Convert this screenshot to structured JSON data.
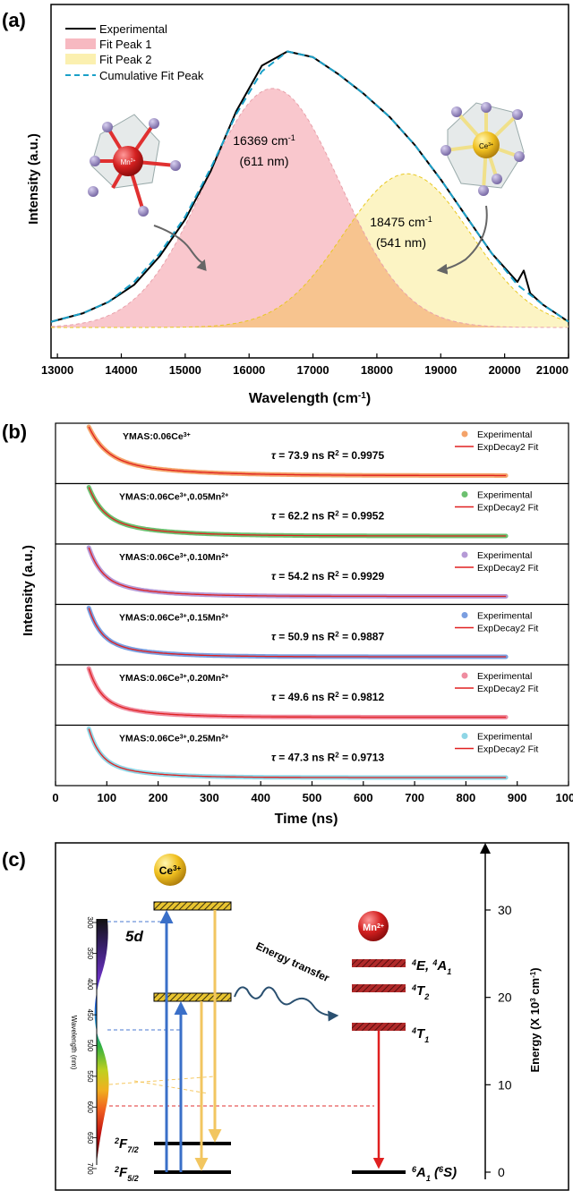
{
  "panel_a": {
    "label": "(a)",
    "ylabel": "Intensity (a.u.)",
    "xlabel_main": "Wavelength (cm",
    "xlabel_sup": "-1",
    "xlabel_close": ")",
    "legend": [
      "Experimental",
      "Fit Peak 1",
      "Fit Peak 2",
      "Cumulative Fit Peak"
    ],
    "peak1_line1_main": "16369 cm",
    "peak1_line1_sup": "-1",
    "peak1_line2": "(611 nm)",
    "peak2_line1_main": "18475 cm",
    "peak2_line1_sup": "-1",
    "peak2_line2": "(541 nm)",
    "ion_left": "Mn",
    "ion_left_sup": "2+",
    "ion_right": "Ce",
    "ion_right_sup": "3+"
  },
  "panel_b": {
    "label": "(b)",
    "ylabel": "Intensity (a.u.)",
    "xlabel": "Time (ns)",
    "legend_exp": "Experimental",
    "legend_fit": "ExpDecay2 Fit"
  },
  "panel_c": {
    "label": "(c)",
    "ce_ion": "Ce",
    "ce_sup": "3+",
    "mn_ion": "Mn",
    "mn_sup": "2+",
    "level_5d": "5d",
    "level_f72_main": "F",
    "level_f72_pre": "2",
    "level_f72_sub": "7/2",
    "level_f52_pre": "2",
    "level_f52_main": "F",
    "level_f52_sub": "5/2",
    "mn_levels": [
      {
        "pre": "4",
        "main": "E, ",
        "pre2": "4",
        "main2": "A",
        "sub": "1"
      },
      {
        "pre": "4",
        "main": "T",
        "sub": "2"
      },
      {
        "pre": "4",
        "main": "T",
        "sub": "1"
      }
    ],
    "ground_mn_pre": "6",
    "ground_mn_main": "A",
    "ground_mn_sub": "1",
    "ground_mn_tail": " (",
    "ground_mn_pre2": "6",
    "ground_mn_tail2": "S)",
    "energy_transfer": "Energy transfer",
    "spectrum_axis_label": "Wavelength (nm)",
    "spectrum_ticks": [
      "300",
      "350",
      "400",
      "450",
      "500",
      "550",
      "600",
      "650",
      "700"
    ],
    "energy_axis_label_main": "Energy (X 10",
    "energy_axis_label_sup": "3",
    "energy_axis_label_unit": " cm",
    "energy_axis_label_sup2": "-1",
    "energy_axis_label_close": ")",
    "energy_ticks": [
      0,
      10,
      20,
      30
    ]
  },
  "colors": {
    "experimental": "#000000",
    "peak1_fill": "#f7b9c1",
    "peak2_fill": "#fbf0b0",
    "overlap_fill": "#f7c48f",
    "cumulative": "#1aa0c8",
    "fit_red": "#e02020",
    "ce_yellow": "#f0c020",
    "mn_red": "#d02020",
    "hatch": "#8b1a1a",
    "arrow_blue": "#3a6fc8"
  },
  "chart_data": [
    {
      "type": "area",
      "title": "(a)",
      "xlabel": "Wavelength (cm-1)",
      "ylabel": "Intensity (a.u.)",
      "xlim": [
        12900,
        21000
      ],
      "xticks": [
        13000,
        14000,
        15000,
        16000,
        17000,
        18000,
        19000,
        20000,
        21000
      ],
      "series": [
        {
          "name": "Fit Peak 1",
          "center": 16369,
          "sigma": 1050,
          "amplitude": 0.84
        },
        {
          "name": "Fit Peak 2",
          "center": 18475,
          "sigma": 1000,
          "amplitude": 0.54
        },
        {
          "name": "Experimental",
          "x": [
            12900,
            13400,
            13800,
            14200,
            14600,
            15000,
            15400,
            15800,
            16200,
            16600,
            17000,
            17400,
            17800,
            18200,
            18600,
            19000,
            19400,
            19800,
            20200,
            20300,
            20400,
            20600,
            21000
          ],
          "y": [
            0.02,
            0.05,
            0.09,
            0.15,
            0.25,
            0.38,
            0.55,
            0.76,
            0.92,
            0.97,
            0.95,
            0.89,
            0.82,
            0.74,
            0.64,
            0.52,
            0.39,
            0.26,
            0.16,
            0.2,
            0.12,
            0.08,
            0.02
          ]
        },
        {
          "name": "Cumulative Fit Peak",
          "x": [
            12900,
            13400,
            13800,
            14200,
            14600,
            15000,
            15400,
            15800,
            16200,
            16600,
            17000,
            17400,
            17800,
            18200,
            18600,
            19000,
            19400,
            19800,
            20200,
            20600,
            21000
          ],
          "y": [
            0.02,
            0.05,
            0.09,
            0.16,
            0.26,
            0.39,
            0.56,
            0.75,
            0.9,
            0.97,
            0.95,
            0.89,
            0.82,
            0.74,
            0.64,
            0.52,
            0.39,
            0.26,
            0.15,
            0.08,
            0.02
          ]
        }
      ],
      "annotations": [
        "16369 cm-1 (611 nm)",
        "18475 cm-1 (541 nm)"
      ],
      "legend": "top-left"
    },
    {
      "type": "line",
      "title": "(b)",
      "xlabel": "Time (ns)",
      "ylabel": "Intensity (a.u.)",
      "xlim": [
        0,
        1000
      ],
      "xticks": [
        0,
        100,
        200,
        300,
        400,
        500,
        600,
        700,
        800,
        900,
        1000
      ],
      "x_range_data": [
        65,
        880
      ],
      "legend": "top-right",
      "series": [
        {
          "name": "YMAS:0.06Ce3+",
          "tau": "73.9 ns",
          "r2": "0.9975",
          "tau_ns": 73.9,
          "color": "#f4a36a"
        },
        {
          "name": "YMAS:0.06Ce3+,0.05Mn2+",
          "tau": "62.2 ns",
          "r2": "0.9952",
          "tau_ns": 62.2,
          "color": "#6cc070"
        },
        {
          "name": "YMAS:0.06Ce3+,0.10Mn2+",
          "tau": "54.2 ns",
          "r2": "0.9929",
          "tau_ns": 54.2,
          "color": "#b59ad6"
        },
        {
          "name": "YMAS:0.06Ce3+,0.15Mn2+",
          "tau": "50.9 ns",
          "r2": "0.9887",
          "tau_ns": 50.9,
          "color": "#7a9ee0"
        },
        {
          "name": "YMAS:0.06Ce3+,0.20Mn2+",
          "tau": "49.6 ns",
          "r2": "0.9812",
          "tau_ns": 49.6,
          "color": "#ef8ca0"
        },
        {
          "name": "YMAS:0.06Ce3+,0.25Mn2+",
          "tau": "47.3 ns",
          "r2": "0.9713",
          "tau_ns": 47.3,
          "color": "#8fd6e6"
        }
      ]
    }
  ]
}
